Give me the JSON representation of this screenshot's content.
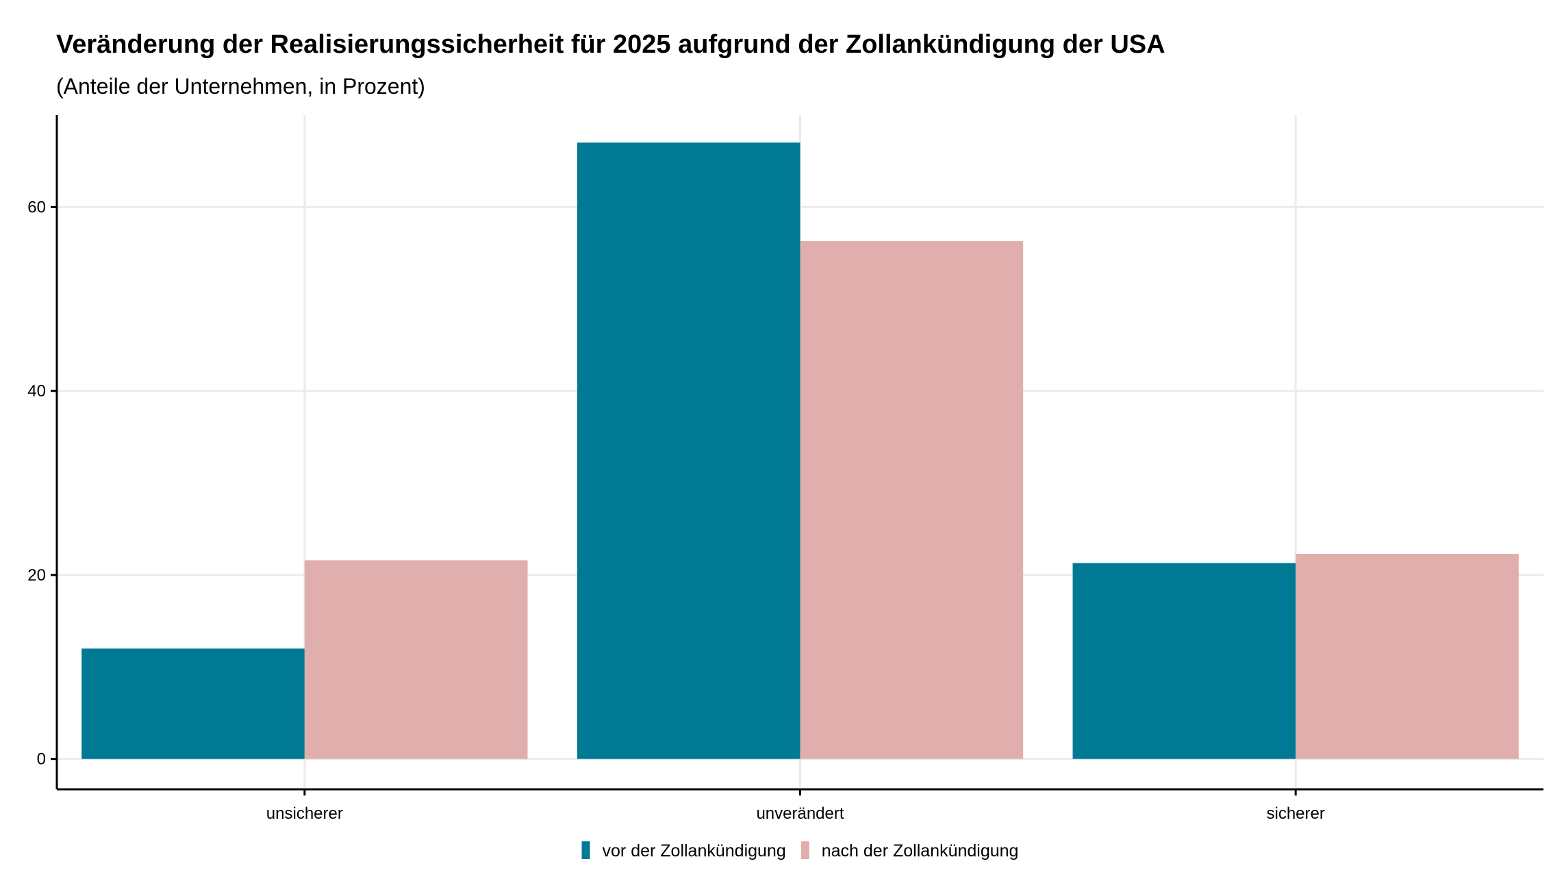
{
  "chart_data": {
    "type": "bar",
    "title": "Veränderung der Realisierungssicherheit für 2025 aufgrund der Zollankündigung der USA",
    "subtitle": "(Anteile der Unternehmen, in Prozent)",
    "xlabel": "",
    "ylabel": "",
    "categories": [
      "unsicherer",
      "unverändert",
      "sicherer"
    ],
    "series": [
      {
        "name": "vor der Zollankündigung",
        "color": "#007a94",
        "values": [
          12,
          67,
          21.3
        ]
      },
      {
        "name": "nach der Zollankündigung",
        "color": "#e0aeac",
        "values": [
          21.6,
          56.3,
          22.3
        ]
      }
    ],
    "yticks": [
      0,
      20,
      40,
      60
    ],
    "ylim": [
      -3.3,
      70
    ],
    "grid": true,
    "legend_position": "bottom",
    "colors": {
      "grid": "#ebebeb",
      "axis": "#000000"
    }
  }
}
